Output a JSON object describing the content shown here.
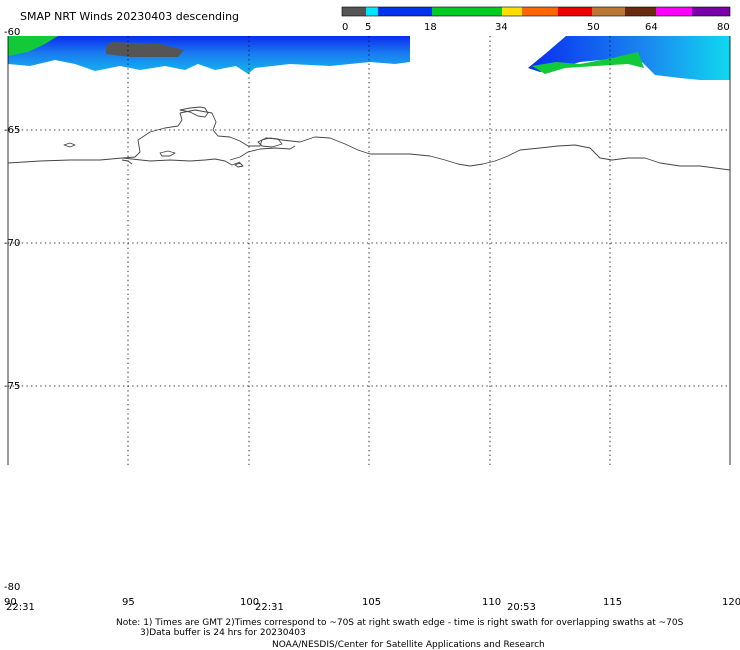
{
  "header": {
    "title": "SMAP NRT Winds  20230403 descending"
  },
  "colorbar": {
    "labels": [
      "0",
      "5",
      "18",
      "34",
      "50",
      "64",
      "80"
    ],
    "colors": [
      "#555555",
      "#00e5ff",
      "#0033ee",
      "#00cc22",
      "#ffdd00",
      "#ff6600",
      "#ee0000",
      "#bb7733",
      "#6a2a10",
      "#ff00ff",
      "#7a00aa"
    ]
  },
  "axes": {
    "lat_labels": [
      "-60",
      "-65",
      "-70",
      "-75",
      "-80"
    ],
    "lon_labels": [
      "90",
      "95",
      "100",
      "105",
      "110",
      "115",
      "120"
    ],
    "time_labels": [
      "22:31",
      "22:31",
      "20:53"
    ]
  },
  "footer": {
    "note_line1": "Note: 1) Times are GMT 2)Times correspond to ~70S at right swath edge - time is right swath for overlapping swaths at ~70S",
    "note_line2": "3)Data buffer is 24 hrs for 20230403",
    "credit": "NOAA/NESDIS/Center for Satellite Applications and Research"
  }
}
